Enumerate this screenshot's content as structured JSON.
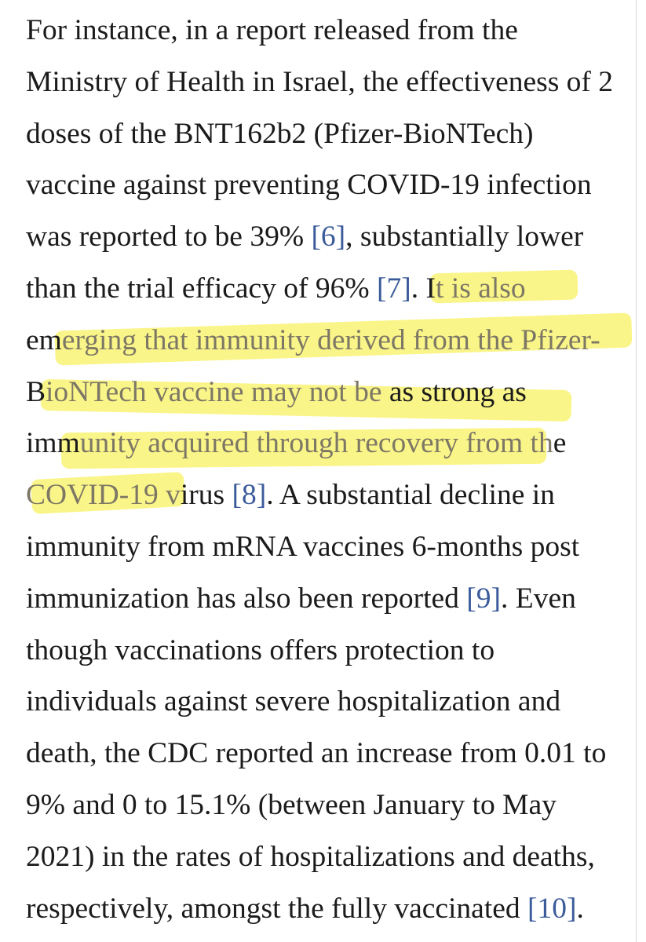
{
  "article": {
    "lines": [
      {
        "segments": [
          {
            "text": "For instance, in a report released from the"
          }
        ]
      },
      {
        "segments": [
          {
            "text": "Ministry of Health in Israel, the effectiveness of 2"
          }
        ]
      },
      {
        "segments": [
          {
            "text": "doses of the BNT162b2 (Pfizer-BioNTech)"
          }
        ]
      },
      {
        "segments": [
          {
            "text": "vaccine against preventing COVID-19 infection"
          }
        ]
      },
      {
        "segments": [
          {
            "text": "was reported to be 39% "
          },
          {
            "text": "[6]",
            "ref": true
          },
          {
            "text": ", substantially lower"
          }
        ]
      },
      {
        "segments": [
          {
            "text": "than the trial efficacy of 96% "
          },
          {
            "text": "[7]",
            "ref": true
          },
          {
            "text": ". I"
          },
          {
            "text": "t is also",
            "hl": true
          }
        ]
      },
      {
        "segments": [
          {
            "text": "em"
          },
          {
            "text": "erging that immunity derived from the Pfizer-",
            "hl": true
          }
        ]
      },
      {
        "segments": [
          {
            "text": "B"
          },
          {
            "text": "ioNTech vaccine may not be",
            "hl": true
          },
          {
            "text": " as strong as"
          }
        ]
      },
      {
        "segments": [
          {
            "text": "imm"
          },
          {
            "text": "unity acquired through recovery from th",
            "hl": true
          },
          {
            "text": "e"
          }
        ]
      },
      {
        "segments": [
          {
            "text": "COVID-19 v",
            "hl": true
          },
          {
            "text": "irus "
          },
          {
            "text": "[8]",
            "ref": true
          },
          {
            "text": ". A substantial decline in"
          }
        ]
      },
      {
        "segments": [
          {
            "text": "immunity from mRNA vaccines 6-months post"
          }
        ]
      },
      {
        "segments": [
          {
            "text": "immunization has also been reported "
          },
          {
            "text": "[9]",
            "ref": true
          },
          {
            "text": ". Even"
          }
        ]
      },
      {
        "segments": [
          {
            "text": "though vaccinations offers protection to"
          }
        ]
      },
      {
        "segments": [
          {
            "text": "individuals against severe hospitalization and"
          }
        ]
      },
      {
        "segments": [
          {
            "text": "death, the CDC reported an increase from 0.01 to"
          }
        ]
      },
      {
        "segments": [
          {
            "text": "9% and 0 to 15.1% (between January to May"
          }
        ]
      },
      {
        "segments": [
          {
            "text": "2021) in the rates of hospitalizations and deaths,"
          }
        ]
      },
      {
        "segments": [
          {
            "text": "respectively, amongst the fully vaccinated "
          },
          {
            "text": "[10]",
            "ref": true
          },
          {
            "text": "."
          }
        ]
      }
    ]
  },
  "colors": {
    "text": "#1b1b1b",
    "reference_link": "#3b5b9a",
    "highlighter": "#f7f050"
  }
}
